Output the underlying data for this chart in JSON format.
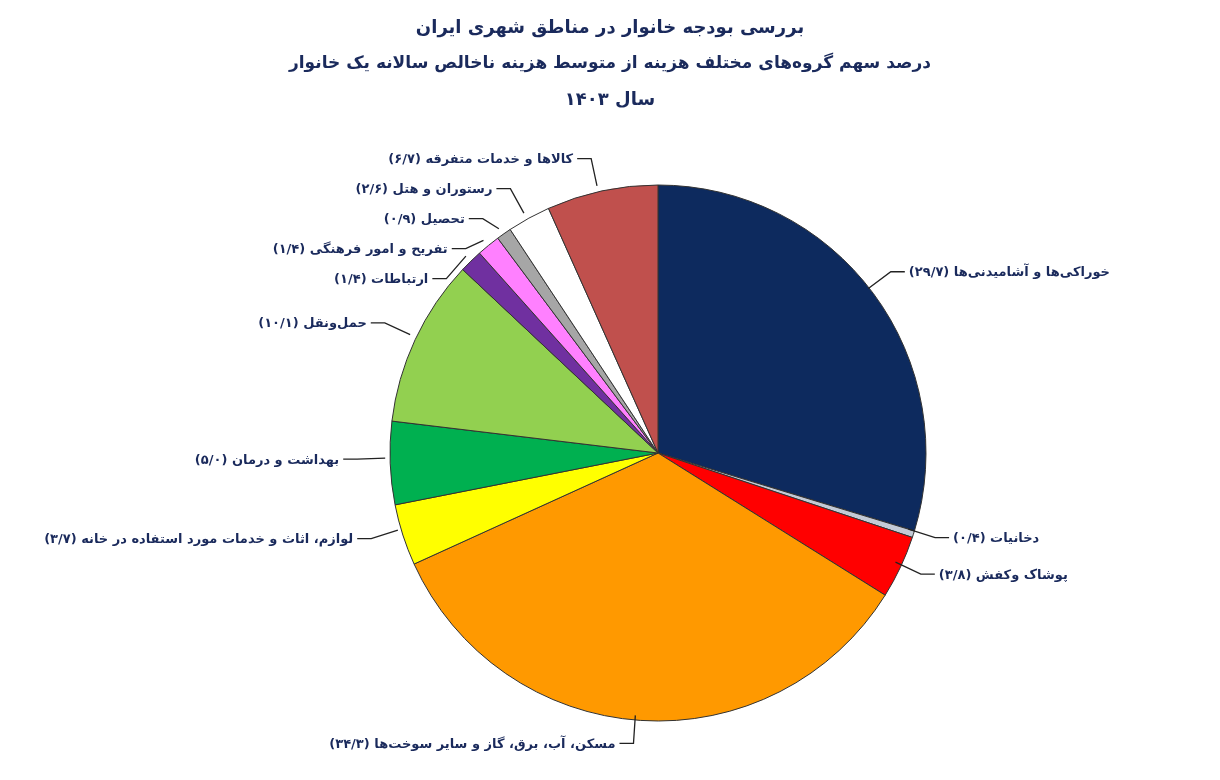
{
  "chart_data": {
    "type": "pie",
    "title": "بررسی بودجه خانوار در مناطق شهری ایران",
    "subtitle": "درصد سهم گروه‌های مختلف هزینه از متوسط هزینه ناخالص سالانه یک خانوار",
    "annotations": [
      "سال ۱۴۰۳"
    ],
    "categories": [
      "خوراکی‌ها و آشامیدنی‌ها",
      "دخانیات",
      "پوشاک وکفش",
      "مسکن، آب، برق، گاز و سایر سوخت‌ها",
      "لوازم، اثاث و خدمات مورد استفاده در خانه",
      "بهداشت و درمان",
      "حمل‌ونقل",
      "ارتباطات",
      "تفریح و امور فرهنگی",
      "تحصیل",
      "رستوران و هتل",
      "کالاها و خدمات متفرقه"
    ],
    "values": [
      29.7,
      0.4,
      3.8,
      34.3,
      3.7,
      5.0,
      10.1,
      1.4,
      1.4,
      0.9,
      2.6,
      6.7
    ],
    "value_labels": [
      "(۲۹/۷)",
      "(۰/۴)",
      "(۳/۸)",
      "(۳۴/۳)",
      "(۳/۷)",
      "(۵/۰)",
      "(۱۰/۱)",
      "(۱/۴)",
      "(۱/۴)",
      "(۰/۹)",
      "(۲/۶)",
      "(۶/۷)"
    ],
    "colors": [
      "#0d2a5e",
      "#c3cad6",
      "#ff0000",
      "#ff9900",
      "#ffff00",
      "#00b050",
      "#92d050",
      "#7030a0",
      "#ff80ff",
      "#a6a6a6",
      "#ffffff",
      "#c0504d"
    ]
  }
}
